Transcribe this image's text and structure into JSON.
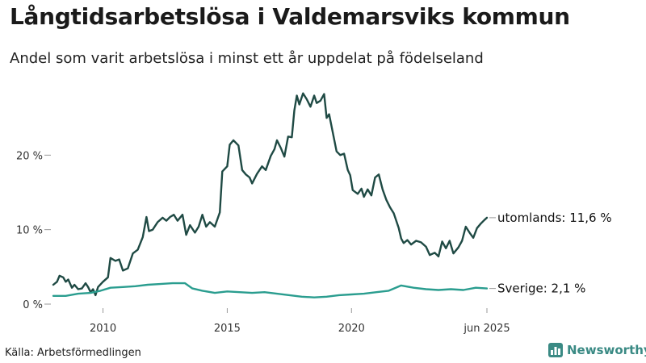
{
  "title": "Långtidsarbetslösa i Valdemarsviks kommun",
  "subtitle": "Andel som varit arbetslösa i minst ett år uppdelat på födelseland",
  "source": "Källa: Arbetsförmedlingen",
  "brand": {
    "name": "Newsworthy",
    "color": "#3a8a84"
  },
  "chart_data": {
    "type": "line",
    "title": "Långtidsarbetslösa i Valdemarsviks kommun",
    "xlabel": "",
    "ylabel": "",
    "x_range": [
      2008.0,
      2025.45
    ],
    "ylim": [
      0,
      28
    ],
    "yticks": [
      {
        "value": 0,
        "label": "0 %"
      },
      {
        "value": 10,
        "label": "10 %"
      },
      {
        "value": 20,
        "label": "20 %"
      }
    ],
    "xticks": [
      {
        "value": 2010,
        "label": "2010"
      },
      {
        "value": 2015,
        "label": "2015"
      },
      {
        "value": 2020,
        "label": "2020"
      },
      {
        "value": 2025.45,
        "label": "jun 2025"
      }
    ],
    "grid": false,
    "series": [
      {
        "name": "utomlands",
        "color": "#1f4a44",
        "end_label": "utomlands: 11,6 %",
        "points": [
          [
            2008.0,
            2.6
          ],
          [
            2008.15,
            3.0
          ],
          [
            2008.25,
            3.8
          ],
          [
            2008.4,
            3.6
          ],
          [
            2008.5,
            3.0
          ],
          [
            2008.6,
            3.3
          ],
          [
            2008.75,
            2.2
          ],
          [
            2008.85,
            2.6
          ],
          [
            2009.0,
            2.0
          ],
          [
            2009.15,
            2.1
          ],
          [
            2009.3,
            2.8
          ],
          [
            2009.4,
            2.3
          ],
          [
            2009.5,
            1.6
          ],
          [
            2009.6,
            2.0
          ],
          [
            2009.7,
            1.2
          ],
          [
            2009.8,
            2.3
          ],
          [
            2010.0,
            3.0
          ],
          [
            2010.2,
            3.6
          ],
          [
            2010.3,
            6.2
          ],
          [
            2010.5,
            5.8
          ],
          [
            2010.65,
            6.0
          ],
          [
            2010.8,
            4.5
          ],
          [
            2011.0,
            4.8
          ],
          [
            2011.2,
            6.8
          ],
          [
            2011.4,
            7.3
          ],
          [
            2011.6,
            9.0
          ],
          [
            2011.75,
            11.7
          ],
          [
            2011.85,
            9.8
          ],
          [
            2012.0,
            10.0
          ],
          [
            2012.2,
            11.0
          ],
          [
            2012.4,
            11.6
          ],
          [
            2012.55,
            11.2
          ],
          [
            2012.7,
            11.7
          ],
          [
            2012.85,
            12.0
          ],
          [
            2013.0,
            11.2
          ],
          [
            2013.2,
            12.0
          ],
          [
            2013.35,
            9.3
          ],
          [
            2013.5,
            10.6
          ],
          [
            2013.7,
            9.6
          ],
          [
            2013.85,
            10.4
          ],
          [
            2014.0,
            12.0
          ],
          [
            2014.15,
            10.4
          ],
          [
            2014.3,
            11.0
          ],
          [
            2014.5,
            10.4
          ],
          [
            2014.7,
            12.3
          ],
          [
            2014.8,
            17.8
          ],
          [
            2015.0,
            18.5
          ],
          [
            2015.1,
            21.4
          ],
          [
            2015.25,
            22.0
          ],
          [
            2015.45,
            21.3
          ],
          [
            2015.6,
            18.0
          ],
          [
            2015.75,
            17.4
          ],
          [
            2015.9,
            17.0
          ],
          [
            2016.0,
            16.2
          ],
          [
            2016.2,
            17.5
          ],
          [
            2016.4,
            18.5
          ],
          [
            2016.55,
            18.0
          ],
          [
            2016.75,
            19.9
          ],
          [
            2016.9,
            20.8
          ],
          [
            2017.0,
            22.0
          ],
          [
            2017.15,
            21.0
          ],
          [
            2017.3,
            19.8
          ],
          [
            2017.45,
            22.5
          ],
          [
            2017.6,
            22.4
          ],
          [
            2017.7,
            26.0
          ],
          [
            2017.8,
            28.0
          ],
          [
            2017.9,
            26.8
          ],
          [
            2018.05,
            28.3
          ],
          [
            2018.2,
            27.5
          ],
          [
            2018.35,
            26.5
          ],
          [
            2018.5,
            28.0
          ],
          [
            2018.6,
            27.0
          ],
          [
            2018.75,
            27.3
          ],
          [
            2018.9,
            28.2
          ],
          [
            2019.0,
            25.0
          ],
          [
            2019.1,
            25.5
          ],
          [
            2019.25,
            23.0
          ],
          [
            2019.4,
            20.5
          ],
          [
            2019.55,
            20.0
          ],
          [
            2019.7,
            20.2
          ],
          [
            2019.85,
            18.0
          ],
          [
            2019.95,
            17.3
          ],
          [
            2020.05,
            15.3
          ],
          [
            2020.25,
            14.8
          ],
          [
            2020.4,
            15.5
          ],
          [
            2020.5,
            14.4
          ],
          [
            2020.65,
            15.4
          ],
          [
            2020.8,
            14.6
          ],
          [
            2020.95,
            17.0
          ],
          [
            2021.1,
            17.4
          ],
          [
            2021.25,
            15.4
          ],
          [
            2021.4,
            14.0
          ],
          [
            2021.55,
            13.0
          ],
          [
            2021.7,
            12.2
          ],
          [
            2021.9,
            10.2
          ],
          [
            2022.0,
            8.8
          ],
          [
            2022.1,
            8.2
          ],
          [
            2022.25,
            8.6
          ],
          [
            2022.4,
            8.0
          ],
          [
            2022.6,
            8.5
          ],
          [
            2022.8,
            8.3
          ],
          [
            2023.0,
            7.7
          ],
          [
            2023.15,
            6.6
          ],
          [
            2023.35,
            6.9
          ],
          [
            2023.5,
            6.4
          ],
          [
            2023.65,
            8.4
          ],
          [
            2023.8,
            7.5
          ],
          [
            2023.95,
            8.5
          ],
          [
            2024.1,
            6.8
          ],
          [
            2024.3,
            7.6
          ],
          [
            2024.45,
            8.5
          ],
          [
            2024.6,
            10.4
          ],
          [
            2024.75,
            9.6
          ],
          [
            2024.9,
            8.9
          ],
          [
            2025.05,
            10.2
          ],
          [
            2025.2,
            10.8
          ],
          [
            2025.35,
            11.3
          ],
          [
            2025.45,
            11.6
          ]
        ]
      },
      {
        "name": "Sverige",
        "color": "#2a9d8f",
        "end_label": "Sverige:  2,1 %",
        "points": [
          [
            2008.0,
            1.1
          ],
          [
            2008.5,
            1.1
          ],
          [
            2009.0,
            1.4
          ],
          [
            2009.5,
            1.5
          ],
          [
            2009.9,
            1.8
          ],
          [
            2010.3,
            2.2
          ],
          [
            2010.8,
            2.3
          ],
          [
            2011.3,
            2.4
          ],
          [
            2011.8,
            2.6
          ],
          [
            2012.3,
            2.7
          ],
          [
            2012.8,
            2.8
          ],
          [
            2013.3,
            2.8
          ],
          [
            2013.6,
            2.1
          ],
          [
            2014.0,
            1.8
          ],
          [
            2014.5,
            1.5
          ],
          [
            2015.0,
            1.7
          ],
          [
            2015.5,
            1.6
          ],
          [
            2016.0,
            1.5
          ],
          [
            2016.5,
            1.6
          ],
          [
            2017.0,
            1.4
          ],
          [
            2017.5,
            1.2
          ],
          [
            2018.0,
            1.0
          ],
          [
            2018.5,
            0.9
          ],
          [
            2019.0,
            1.0
          ],
          [
            2019.5,
            1.2
          ],
          [
            2020.0,
            1.3
          ],
          [
            2020.5,
            1.4
          ],
          [
            2021.0,
            1.6
          ],
          [
            2021.5,
            1.8
          ],
          [
            2022.0,
            2.5
          ],
          [
            2022.5,
            2.2
          ],
          [
            2023.0,
            2.0
          ],
          [
            2023.5,
            1.9
          ],
          [
            2024.0,
            2.0
          ],
          [
            2024.5,
            1.9
          ],
          [
            2025.0,
            2.2
          ],
          [
            2025.45,
            2.1
          ]
        ]
      }
    ]
  }
}
